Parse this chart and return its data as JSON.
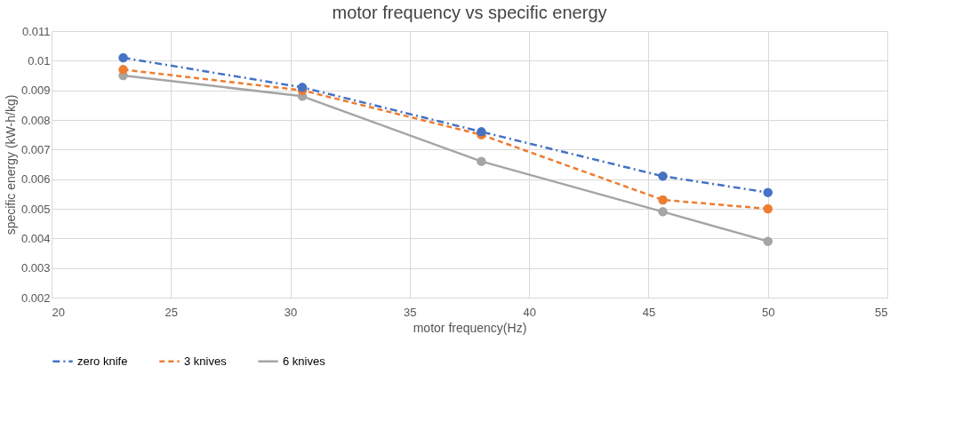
{
  "chart_data": {
    "type": "line",
    "title": "motor frequency vs specific energy",
    "xlabel": "motor frequency(Hz)",
    "ylabel": "specific energy (kW-h/kg)",
    "x": [
      23,
      30.5,
      38,
      45.6,
      50
    ],
    "series": [
      {
        "name": "zero knife",
        "color": "#4472c4",
        "line_style": "dashdot",
        "values": [
          0.0101,
          0.0091,
          0.0076,
          0.0061,
          0.00555
        ]
      },
      {
        "name": "3 knives",
        "color": "#ed7d31",
        "line_style": "dashed",
        "values": [
          0.0097,
          0.009,
          0.0075,
          0.0053,
          0.005
        ]
      },
      {
        "name": "6 knives",
        "color": "#a5a5a5",
        "line_style": "solid",
        "values": [
          0.0095,
          0.0088,
          0.0066,
          0.0049,
          0.0039
        ]
      }
    ],
    "xlim": [
      20,
      55
    ],
    "xticks": [
      20,
      25,
      30,
      35,
      40,
      45,
      50,
      55
    ],
    "ylim": [
      0.002,
      0.011
    ],
    "yticks": [
      0.002,
      0.003,
      0.004,
      0.005,
      0.006,
      0.007,
      0.008,
      0.009,
      0.01,
      0.011
    ],
    "grid": true,
    "legend": "bottom",
    "marker": "circle"
  }
}
